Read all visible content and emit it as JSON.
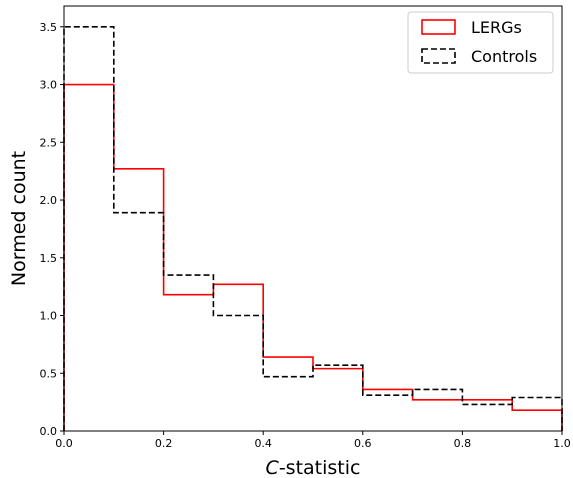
{
  "chart_data": {
    "type": "histogram",
    "xlabel_italic": "C",
    "xlabel_rest": "-statistic",
    "ylabel": "Normed count",
    "xlim": [
      0.0,
      1.0
    ],
    "ylim": [
      0.0,
      3.68
    ],
    "xticks": [
      "0.0",
      "0.2",
      "0.4",
      "0.6",
      "0.8",
      "1.0"
    ],
    "yticks": [
      "0.0",
      "0.5",
      "1.0",
      "1.5",
      "2.0",
      "2.5",
      "3.0",
      "3.5"
    ],
    "bin_edges": [
      0.0,
      0.1,
      0.2,
      0.3,
      0.4,
      0.5,
      0.6,
      0.7,
      0.8,
      0.9,
      1.0
    ],
    "series": [
      {
        "name": "LERGs",
        "style": "solid",
        "color": "#ff0000",
        "values": [
          3.0,
          2.27,
          1.18,
          1.27,
          0.64,
          0.54,
          0.36,
          0.27,
          0.27,
          0.18
        ]
      },
      {
        "name": "Controls",
        "style": "dashed",
        "color": "#000000",
        "values": [
          3.5,
          1.89,
          1.35,
          1.0,
          0.47,
          0.57,
          0.31,
          0.36,
          0.23,
          0.29
        ]
      }
    ],
    "legend_position": "top-right",
    "grid": false
  }
}
